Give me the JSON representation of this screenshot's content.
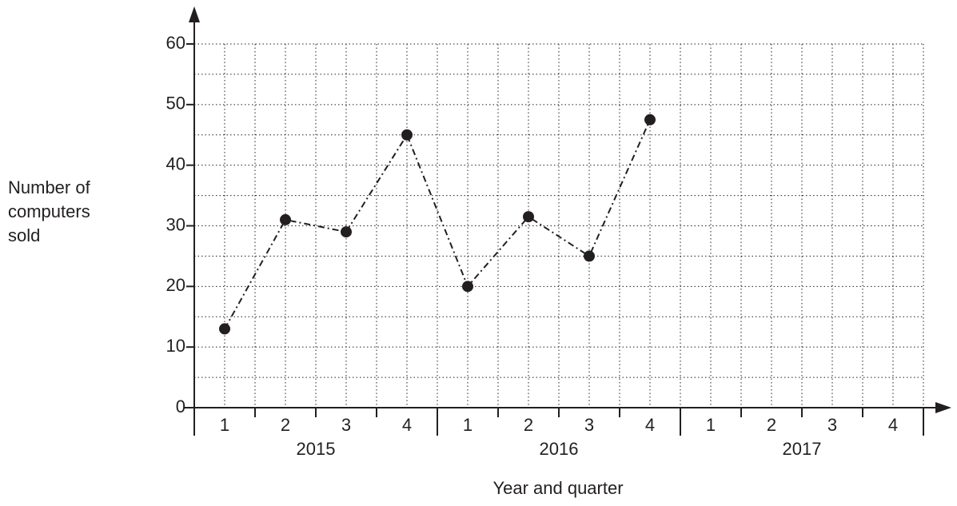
{
  "chart_data": {
    "type": "line",
    "x_label": "Year and quarter",
    "y_label": "Number of computers sold",
    "categories": [
      "1",
      "2",
      "3",
      "4",
      "1",
      "2",
      "3",
      "4",
      "1",
      "2",
      "3",
      "4"
    ],
    "years": [
      "2015",
      "2016",
      "2017"
    ],
    "series": [
      {
        "name": "Computers sold",
        "color": "#231f20",
        "values": [
          13,
          31,
          29,
          45,
          20,
          31.5,
          25,
          47.5,
          null,
          null,
          null,
          null
        ]
      }
    ],
    "ylim": [
      0,
      60
    ],
    "yticks": [
      0,
      10,
      20,
      30,
      40,
      50,
      60
    ],
    "grid": true
  }
}
